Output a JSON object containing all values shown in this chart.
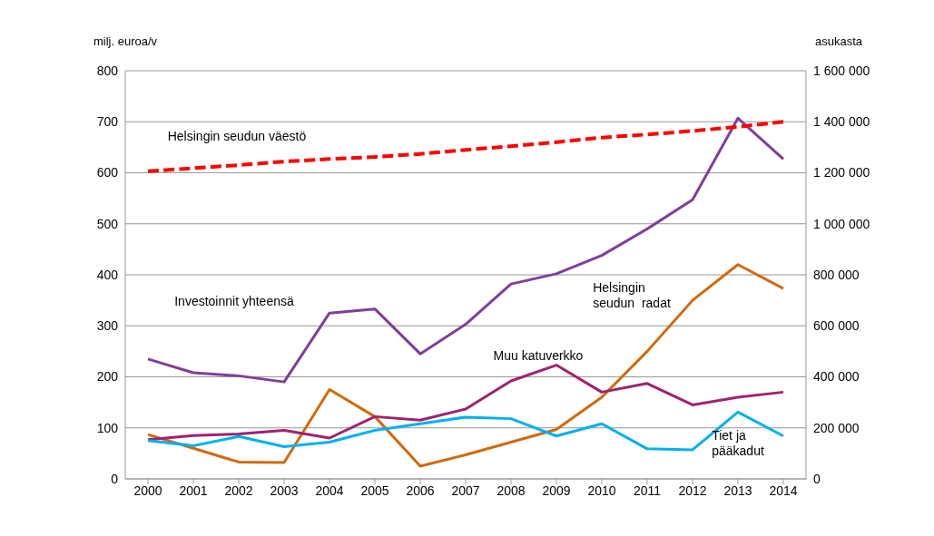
{
  "chart_data": {
    "type": "line",
    "ylabel": "milj. euroa/v",
    "y2label": "asukasta",
    "categories": [
      "2000",
      "2001",
      "2002",
      "2003",
      "2004",
      "2005",
      "2006",
      "2007",
      "2008",
      "2009",
      "2010",
      "2011",
      "2012",
      "2013",
      "2014"
    ],
    "series": [
      {
        "name": "Investoinnit yhteensä",
        "color": "#7f3f98",
        "values": [
          235,
          208,
          202,
          190,
          325,
          333,
          245,
          303,
          382,
          402,
          438,
          490,
          547,
          707,
          627
        ]
      },
      {
        "name": "Helsingin\nseudun  radat",
        "color": "#d2690e",
        "values": [
          87,
          60,
          33,
          32,
          175,
          122,
          25,
          47,
          72,
          97,
          160,
          250,
          350,
          420,
          373
        ]
      },
      {
        "name": "Muu katuverkko",
        "color": "#a0226e",
        "values": [
          77,
          85,
          88,
          95,
          80,
          122,
          115,
          137,
          192,
          223,
          170,
          187,
          145,
          160,
          170
        ]
      },
      {
        "name": "Tiet ja\npääkadut",
        "color": "#00b0f0",
        "values": [
          75,
          65,
          83,
          63,
          72,
          95,
          108,
          121,
          118,
          84,
          108,
          59,
          57,
          131,
          84
        ]
      },
      {
        "name": "Helsingin seudun väestö",
        "color": "#ff0000",
        "axis": "y2",
        "line_style": "dashed",
        "values": [
          1206000,
          1218000,
          1230000,
          1244000,
          1254000,
          1262000,
          1274000,
          1290000,
          1304000,
          1320000,
          1338000,
          1350000,
          1364000,
          1380000,
          1400000
        ]
      }
    ],
    "ylim": [
      0,
      800
    ],
    "yticks": [
      0,
      100,
      200,
      300,
      400,
      500,
      600,
      700,
      800
    ],
    "y2lim": [
      0,
      1600000
    ],
    "y2ticks": [
      {
        "value": 0,
        "label": "0"
      },
      {
        "value": 200000,
        "label": "200 000"
      },
      {
        "value": 400000,
        "label": "400 000"
      },
      {
        "value": 600000,
        "label": "600 000"
      },
      {
        "value": 800000,
        "label": "800 000"
      },
      {
        "value": 1000000,
        "label": "1 000 000"
      },
      {
        "value": 1200000,
        "label": "1 200 000"
      },
      {
        "value": 1400000,
        "label": "1 400 000"
      },
      {
        "value": 1600000,
        "label": "1 600 000"
      }
    ],
    "grid": "y",
    "legend": false,
    "marker": "none",
    "line_style": "solid"
  }
}
